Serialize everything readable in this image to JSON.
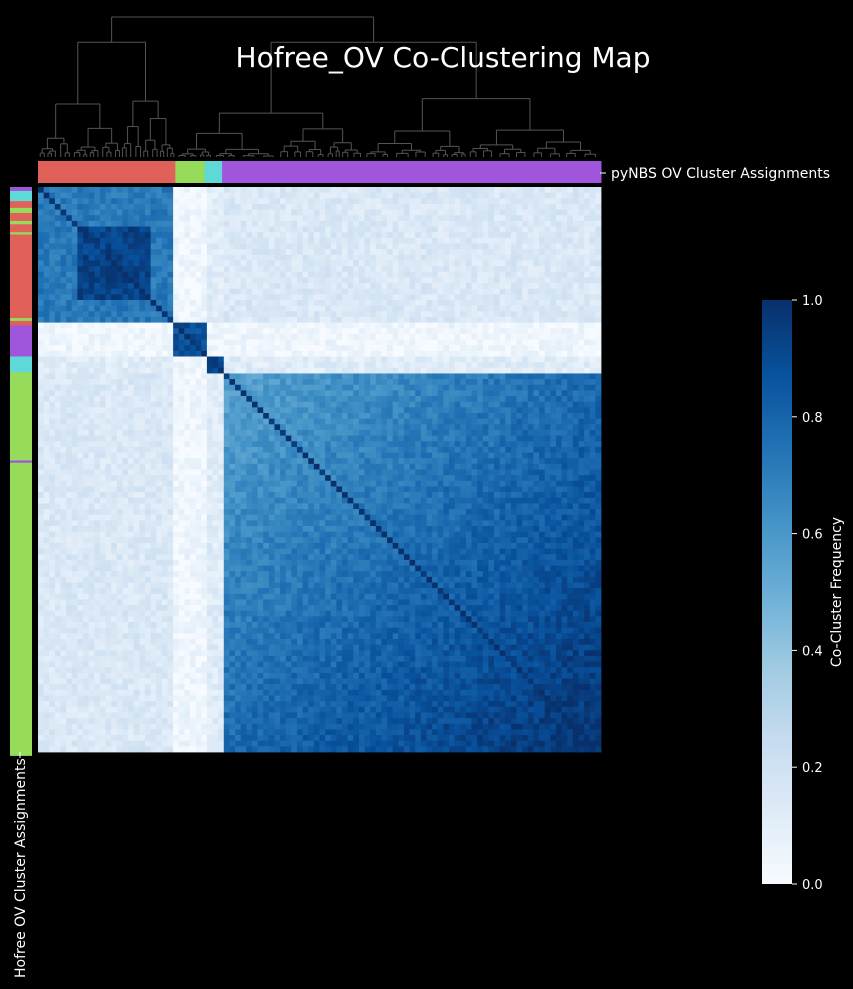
{
  "title": "Hofree_OV Co-Clustering Map",
  "chart_data": {
    "type": "heatmap",
    "title": "Hofree_OV Co-Clustering Map",
    "value_range": [
      0,
      1
    ],
    "colormap": "Blues",
    "colorbar": {
      "label": "Co-Cluster Frequency",
      "ticks": [
        0.0,
        0.2,
        0.4,
        0.6,
        0.8,
        1.0
      ],
      "tick_labels": [
        "0.0",
        "0.2",
        "0.4",
        "0.6",
        "0.8",
        "1.0"
      ],
      "placement": "right"
    },
    "column_annotation": {
      "label": "pyNBS OV Cluster Assignments",
      "segments": [
        {
          "color": "#e0615a",
          "fraction": 0.244
        },
        {
          "color": "#96dc5a",
          "fraction": 0.052
        },
        {
          "color": "#5fd8d8",
          "fraction": 0.031
        },
        {
          "color": "#a056dc",
          "fraction": 0.673
        }
      ]
    },
    "row_annotation": {
      "label": "Hofree OV Cluster Assignments",
      "segments": [
        {
          "color": "#a056dc",
          "fraction": 0.007
        },
        {
          "color": "#5fd8d8",
          "fraction": 0.018
        },
        {
          "color": "#e0615a",
          "fraction": 0.012
        },
        {
          "color": "#96dc5a",
          "fraction": 0.009
        },
        {
          "color": "#e0615a",
          "fraction": 0.014
        },
        {
          "color": "#96dc5a",
          "fraction": 0.006
        },
        {
          "color": "#e0615a",
          "fraction": 0.014
        },
        {
          "color": "#96dc5a",
          "fraction": 0.004
        },
        {
          "color": "#e0615a",
          "fraction": 0.148
        },
        {
          "color": "#96dc5a",
          "fraction": 0.005
        },
        {
          "color": "#e0615a",
          "fraction": 0.008
        },
        {
          "color": "#a056dc",
          "fraction": 0.055
        },
        {
          "color": "#5fd8d8",
          "fraction": 0.028
        },
        {
          "color": "#96dc5a",
          "fraction": 0.156
        },
        {
          "color": "#a056dc",
          "fraction": 0.004
        },
        {
          "color": "#96dc5a",
          "fraction": 0.518
        }
      ]
    },
    "dendrogram": "top",
    "block_structure": [
      {
        "start": 0.0,
        "end": 0.244,
        "level": 0.72
      },
      {
        "start": 0.244,
        "end": 0.296,
        "level": 0.88
      },
      {
        "start": 0.296,
        "end": 0.327,
        "level": 0.93
      },
      {
        "start": 0.327,
        "end": 1.0,
        "level": 0.8
      }
    ]
  }
}
